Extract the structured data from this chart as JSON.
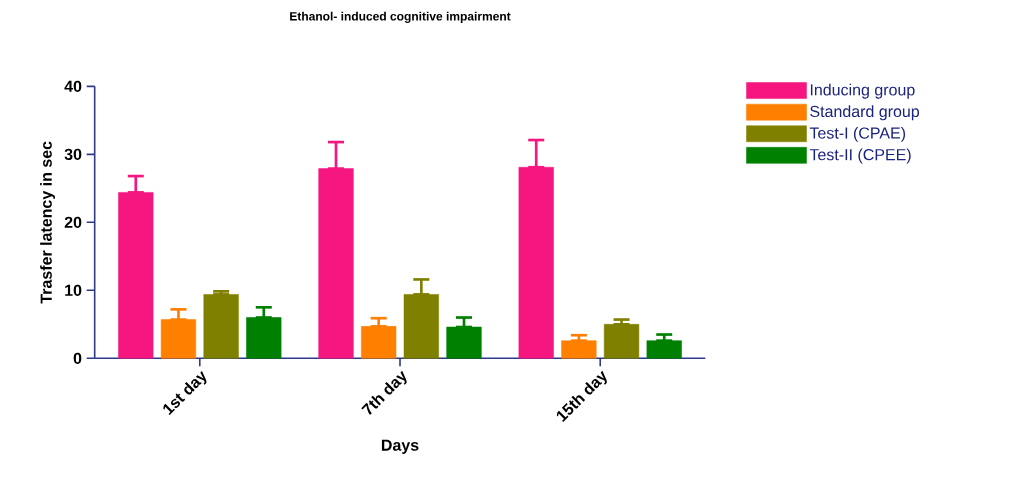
{
  "chart_data": {
    "type": "bar",
    "title": "Ethanol- induced cognitive impairment",
    "xlabel": "Days",
    "ylabel": "Trasfer latency in sec",
    "categories": [
      "1st day",
      "7th day",
      "15th day"
    ],
    "series": [
      {
        "name": "Inducing group",
        "color": "#f5167f",
        "values": [
          24.4,
          27.9,
          28.1
        ],
        "errors": [
          [
            24.4,
            26.8
          ],
          [
            27.9,
            31.8
          ],
          [
            28.1,
            32.1
          ]
        ]
      },
      {
        "name": "Standard group",
        "color": "#ff8000",
        "values": [
          5.7,
          4.7,
          2.6
        ],
        "errors": [
          [
            5.7,
            7.2
          ],
          [
            4.7,
            5.9
          ],
          [
            2.6,
            3.4
          ]
        ]
      },
      {
        "name": "Test-I (CPAE)",
        "color": "#808000",
        "values": [
          9.4,
          9.4,
          5.0
        ],
        "errors": [
          [
            9.4,
            9.85
          ],
          [
            9.4,
            11.6
          ],
          [
            5.0,
            5.7
          ]
        ]
      },
      {
        "name": "Test-II (CPEE)",
        "color": "#008000",
        "values": [
          6.0,
          4.6,
          2.6
        ],
        "errors": [
          [
            6.0,
            7.5
          ],
          [
            4.6,
            6.0
          ],
          [
            2.6,
            3.5
          ]
        ]
      }
    ],
    "ylim": [
      0,
      40
    ],
    "yticks": [
      0,
      10,
      20,
      30,
      40
    ],
    "grid": false,
    "legend": "top right"
  }
}
